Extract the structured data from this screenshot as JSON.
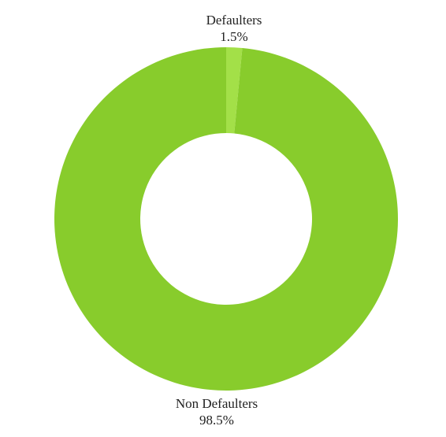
{
  "chart_data": {
    "type": "pie",
    "donut": true,
    "categories": [
      "Defaulters",
      "Non Defaulters"
    ],
    "values": [
      1.5,
      98.5
    ],
    "value_labels": [
      "1.5%",
      "98.5%"
    ],
    "colors": [
      "#a3e048",
      "#88cc2c"
    ],
    "legend": "none"
  }
}
